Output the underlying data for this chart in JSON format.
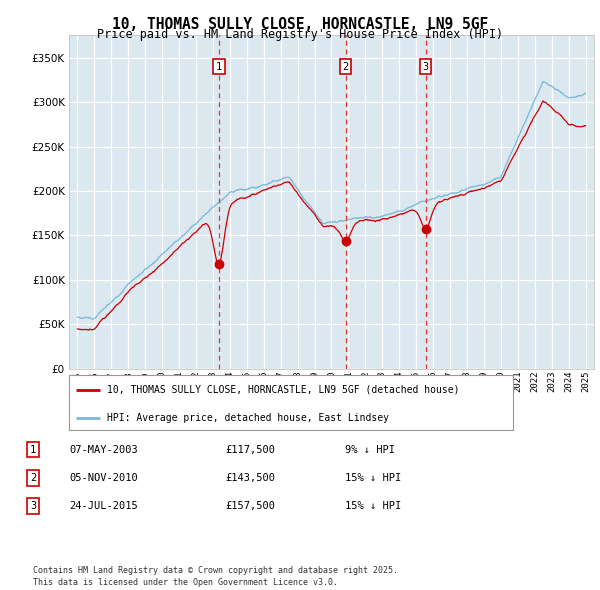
{
  "title": "10, THOMAS SULLY CLOSE, HORNCASTLE, LN9 5GF",
  "subtitle": "Price paid vs. HM Land Registry's House Price Index (HPI)",
  "legend_line1": "10, THOMAS SULLY CLOSE, HORNCASTLE, LN9 5GF (detached house)",
  "legend_line2": "HPI: Average price, detached house, East Lindsey",
  "footer": "Contains HM Land Registry data © Crown copyright and database right 2025.\nThis data is licensed under the Open Government Licence v3.0.",
  "transactions": [
    {
      "num": 1,
      "date": "07-MAY-2003",
      "price": 117500,
      "pct": "9%",
      "dir": "↓",
      "year_x": 2003.35
    },
    {
      "num": 2,
      "date": "05-NOV-2010",
      "price": 143500,
      "pct": "15%",
      "dir": "↓",
      "year_x": 2010.84
    },
    {
      "num": 3,
      "date": "24-JUL-2015",
      "price": 157500,
      "pct": "15%",
      "dir": "↓",
      "year_x": 2015.56
    }
  ],
  "hpi_color": "#7ab8d9",
  "price_color": "#cc0000",
  "vline_color": "#ee3333",
  "plot_bg": "#dce8f0",
  "grid_color": "#ffffff",
  "ylim": [
    0,
    375000
  ],
  "yticks": [
    0,
    50000,
    100000,
    150000,
    200000,
    250000,
    300000,
    350000
  ],
  "xlim": [
    1994.5,
    2025.5
  ],
  "xticks": [
    1995,
    1996,
    1997,
    1998,
    1999,
    2000,
    2001,
    2002,
    2003,
    2004,
    2005,
    2006,
    2007,
    2008,
    2009,
    2010,
    2011,
    2012,
    2013,
    2014,
    2015,
    2016,
    2017,
    2018,
    2019,
    2020,
    2021,
    2022,
    2023,
    2024,
    2025
  ]
}
